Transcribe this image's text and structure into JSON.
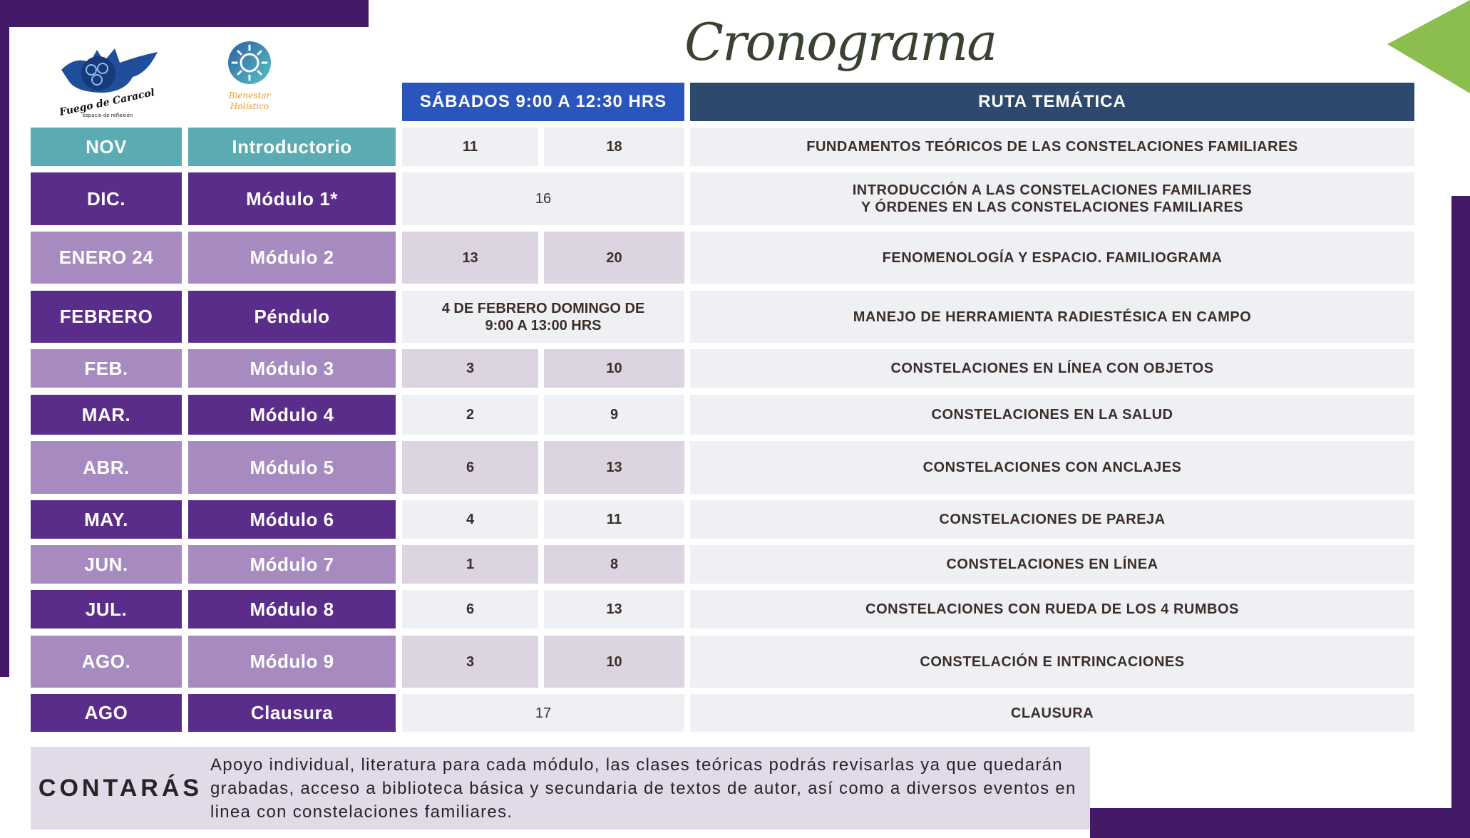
{
  "title": "Cronograma",
  "logos": {
    "left": "Fuego de Caracol espacio de reflexión",
    "right": "Bienestar Holístico"
  },
  "header": {
    "schedule": "SÁBADOS 9:00 A 12:30 HRS",
    "route": "RUTA TEMÁTICA"
  },
  "colors": {
    "teal": "#5aabb2",
    "dark_purple": "#5b2d8a",
    "light_purple": "#a78bc0",
    "header_blue": "#2a55bd",
    "header_navy": "#2d4a6e",
    "accent_green": "#8bbd4f",
    "frame_purple": "#441a68"
  },
  "rows": [
    {
      "month": "NOV",
      "module": "Introductorio",
      "style": "teal",
      "dates": [
        "11",
        "18"
      ],
      "topic": "FUNDAMENTOS TEÓRICOS DE LAS CONSTELACIONES FAMILIARES"
    },
    {
      "month": "DIC.",
      "module": "Módulo 1*",
      "style": "dark",
      "dates": [
        "16"
      ],
      "topic": "INTRODUCCIÓN A LAS CONSTELACIONES FAMILIARES Y ÓRDENES EN LAS CONSTELACIONES FAMILIARES"
    },
    {
      "month": "ENERO 24",
      "module": "Módulo 2",
      "style": "light",
      "dates": [
        "13",
        "20"
      ],
      "topic": "FENOMENOLOGÍA Y ESPACIO. FAMILIOGRAMA"
    },
    {
      "month": "FEBRERO",
      "module": "Péndulo",
      "style": "dark",
      "dates": [
        "4 DE FEBRERO DOMINGO DE 9:00 A 13:00 HRS"
      ],
      "topic": "MANEJO DE HERRAMIENTA RADIESTÉSICA EN CAMPO"
    },
    {
      "month": "FEB.",
      "module": "Módulo 3",
      "style": "light",
      "dates": [
        "3",
        "10"
      ],
      "topic": "CONSTELACIONES EN LÍNEA CON OBJETOS"
    },
    {
      "month": "MAR.",
      "module": "Módulo 4",
      "style": "dark",
      "dates": [
        "2",
        "9"
      ],
      "topic": "CONSTELACIONES EN LA SALUD"
    },
    {
      "month": "ABR.",
      "module": "Módulo 5",
      "style": "light",
      "dates": [
        "6",
        "13"
      ],
      "topic": "CONSTELACIONES CON ANCLAJES"
    },
    {
      "month": "MAY.",
      "module": "Módulo 6",
      "style": "dark",
      "dates": [
        "4",
        "11"
      ],
      "topic": "CONSTELACIONES DE PAREJA"
    },
    {
      "month": "JUN.",
      "module": "Módulo 7",
      "style": "light",
      "dates": [
        "1",
        "8"
      ],
      "topic": "CONSTELACIONES EN LÍNEA"
    },
    {
      "month": "JUL.",
      "module": "Módulo 8",
      "style": "dark",
      "dates": [
        "6",
        "13"
      ],
      "topic": "CONSTELACIONES CON RUEDA DE LOS 4 RUMBOS"
    },
    {
      "month": "AGO.",
      "module": "Módulo 9",
      "style": "light",
      "dates": [
        "3",
        "10"
      ],
      "topic": "CONSTELACIÓN E INTRINCACIONES"
    },
    {
      "month": "AGO",
      "module": "Clausura",
      "style": "dark",
      "dates": [
        "17"
      ],
      "topic": "CLAUSURA"
    }
  ],
  "footer": {
    "label": "CONTARÁS",
    "text": "Apoyo individual, literatura para cada módulo, las clases teóricas podrás revisarlas ya que quedarán grabadas, acceso a biblioteca básica y secundaria de textos de autor, así como a diversos eventos en linea con constelaciones familiares."
  }
}
